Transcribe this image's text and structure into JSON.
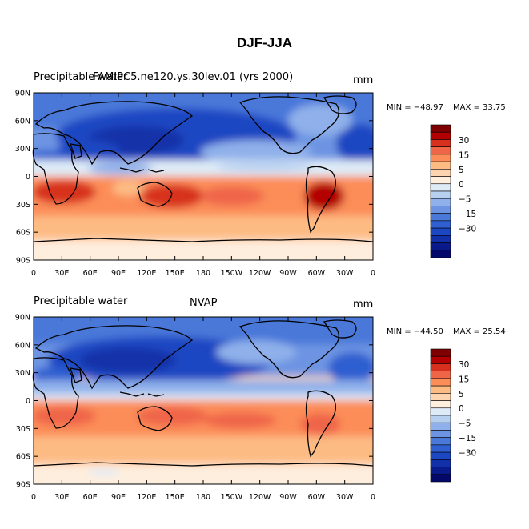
{
  "title": "DJF-JJA",
  "chart_data": [
    {
      "type": "filled_contour_map",
      "left_label": "Precipitable water",
      "center_label": "FAMIPC5.ne120.ys.30lev.01 (yrs 2000)",
      "right_label": "mm",
      "min_label": "MIN = −48.97",
      "max_label": "MAX =  33.75",
      "min": -48.97,
      "max": 33.75
    },
    {
      "type": "filled_contour_map",
      "left_label": "Precipitable water",
      "center_label": "NVAP",
      "right_label": "mm",
      "min_label": "MIN = −44.50",
      "max_label": "MAX =  25.54",
      "min": -44.5,
      "max": 25.54
    }
  ],
  "x_ticks": [
    "0",
    "30E",
    "60E",
    "90E",
    "120E",
    "150E",
    "180",
    "150W",
    "120W",
    "90W",
    "60W",
    "30W",
    "0"
  ],
  "y_ticks": [
    "90N",
    "60N",
    "30N",
    "0",
    "30S",
    "60S",
    "90S"
  ],
  "colorbar": {
    "levels": [
      -45,
      -40,
      -35,
      -30,
      -25,
      -20,
      -15,
      -10,
      -5,
      0,
      5,
      10,
      15,
      20,
      25,
      30,
      35,
      40
    ],
    "labels": [
      "30",
      "15",
      "5",
      "0",
      "−5",
      "−15",
      "−30"
    ],
    "colors": [
      "#7f0000",
      "#b30000",
      "#d7301f",
      "#ef6548",
      "#fc8d59",
      "#fdbb84",
      "#fdd4b0",
      "#feeede",
      "#deebf7",
      "#b8d0f0",
      "#8fb0ea",
      "#6d94e2",
      "#4a78d9",
      "#2f5fd0",
      "#1c46c2",
      "#1230a8",
      "#0b1a8a",
      "#05086b"
    ]
  }
}
